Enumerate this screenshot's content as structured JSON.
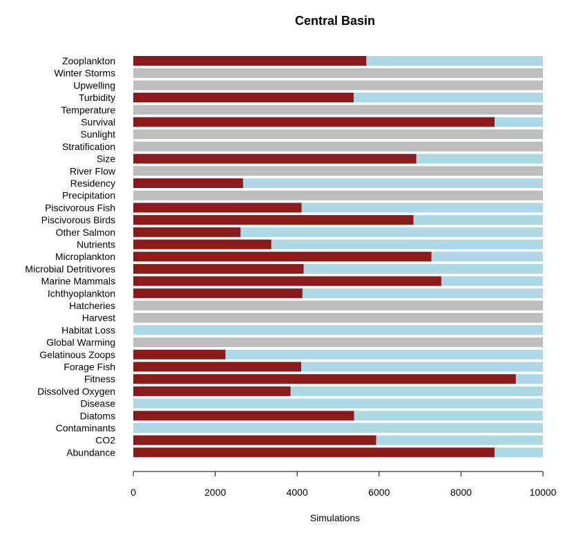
{
  "colors": {
    "positive": "#8b1a1a",
    "negative": "#add8e6",
    "neutral": "#bebebe"
  },
  "chart_data": {
    "type": "bar",
    "orientation": "horizontal",
    "stacked": true,
    "title": "Central Basin",
    "xlabel": "Simulations",
    "ylabel": "",
    "xlim": [
      0,
      10000
    ],
    "xticks": [
      0,
      2000,
      4000,
      6000,
      8000,
      10000
    ],
    "grid": false,
    "legend": "none",
    "categories": [
      "Zooplankton",
      "Winter Storms",
      "Upwelling",
      "Turbidity",
      "Temperature",
      "Survival",
      "Sunlight",
      "Stratification",
      "Size",
      "River Flow",
      "Residency",
      "Precipitation",
      "Piscivorous Fish",
      "Piscivorous Birds",
      "Other Salmon",
      "Nutrients",
      "Microplankton",
      "Microbial Detritivores",
      "Marine Mammals",
      "Ichthyoplankton",
      "Hatcheries",
      "Harvest",
      "Habitat Loss",
      "Global Warming",
      "Gelatinous Zoops",
      "Forage Fish",
      "Fitness",
      "Dissolved Oxygen",
      "Disease",
      "Diatoms",
      "Contaminants",
      "CO2",
      "Abundance"
    ],
    "series": [
      {
        "color": "#8b1a1a",
        "values": [
          5690,
          0,
          0,
          5380,
          0,
          8820,
          0,
          0,
          6910,
          0,
          2680,
          0,
          4110,
          6840,
          2620,
          3370,
          7280,
          4160,
          7520,
          4130,
          0,
          0,
          0,
          0,
          2250,
          4100,
          9340,
          3840,
          0,
          5390,
          0,
          5930,
          8820
        ]
      },
      {
        "color": "#add8e6",
        "values": [
          4310,
          0,
          0,
          4620,
          0,
          1180,
          0,
          0,
          3090,
          0,
          7320,
          0,
          5890,
          3160,
          7380,
          6630,
          2720,
          5840,
          2480,
          5870,
          0,
          0,
          10000,
          0,
          7750,
          5900,
          660,
          6160,
          10000,
          4610,
          10000,
          4070,
          1180
        ]
      },
      {
        "color": "#bebebe",
        "values": [
          0,
          10000,
          10000,
          0,
          10000,
          0,
          10000,
          10000,
          0,
          10000,
          0,
          10000,
          0,
          0,
          0,
          0,
          0,
          0,
          0,
          0,
          10000,
          10000,
          0,
          10000,
          0,
          0,
          0,
          0,
          0,
          0,
          0,
          0,
          0
        ]
      }
    ]
  }
}
